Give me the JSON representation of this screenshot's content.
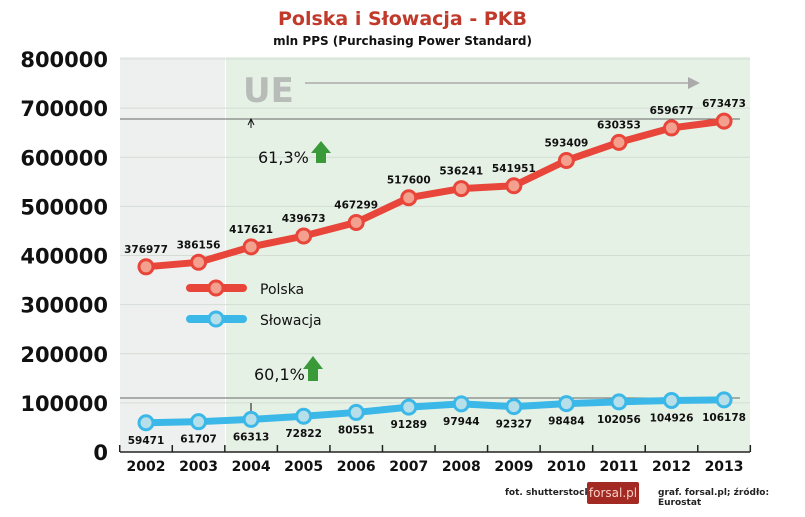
{
  "title": "Polska i Słowacja - PKB",
  "subtitle": "mln PPS (Purchasing Power Standard)",
  "footer": {
    "photo": "fot. shutterstock",
    "logo": "forsal.pl",
    "source": "graf. forsal.pl;  źródło: Eurostat"
  },
  "colors": {
    "polska": "#e8463a",
    "slowacja": "#3bb8e8",
    "title": "#c0392b",
    "arrow": "#3a9a3a"
  },
  "chart_data": {
    "type": "line",
    "title": "Polska i Słowacja - PKB",
    "subtitle": "mln PPS (Purchasing Power Standard)",
    "categories": [
      "2002",
      "2003",
      "2004",
      "2005",
      "2006",
      "2007",
      "2008",
      "2009",
      "2010",
      "2011",
      "2012",
      "2013"
    ],
    "series": [
      {
        "name": "Polska",
        "values": [
          376977,
          386156,
          417621,
          439673,
          467299,
          517600,
          536241,
          541951,
          593409,
          630353,
          659677,
          673473
        ]
      },
      {
        "name": "Słowacja",
        "values": [
          59471,
          61707,
          66313,
          72822,
          80551,
          91289,
          97944,
          92327,
          98484,
          102056,
          104926,
          106178
        ]
      }
    ],
    "ylim": [
      0,
      800000
    ],
    "yticks": [
      "0",
      "100000",
      "200000",
      "300000",
      "400000",
      "500000",
      "600000",
      "700000",
      "800000"
    ],
    "grid": true,
    "legend": "center-left",
    "annotations": {
      "ue": "UE",
      "polska_growth": "61,3%",
      "slowacja_growth": "60,1%"
    }
  }
}
